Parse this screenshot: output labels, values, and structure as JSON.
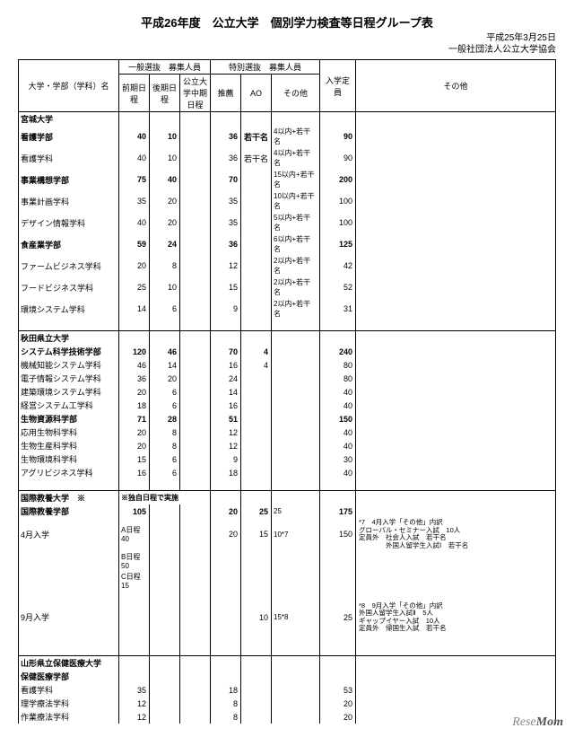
{
  "title": "平成26年度　公立大学　個別学力検査等日程グループ表",
  "meta_date": "平成25年3月25日",
  "meta_org": "一般社団法人公立大学協会",
  "header": {
    "name": "大学・学部（学科）名",
    "g1": "一般選抜　募集人員",
    "g2": "特別選抜　募集人員",
    "c1": "前期日程",
    "c2": "後期日程",
    "c3": "公立大学中期日程",
    "c4": "推薦",
    "c5": "AO",
    "c6": "その他",
    "cap": "入学定員",
    "etc": "その他"
  },
  "rows": [
    {
      "sec": true,
      "n": "宮城大学",
      "b": 1
    },
    {
      "n": "看護学部",
      "b": 1,
      "i": 1,
      "v": [
        "40",
        "10",
        "",
        "36",
        "若干名",
        "4以内+若干名",
        "90",
        ""
      ]
    },
    {
      "n": "看護学科",
      "i": 2,
      "v": [
        "40",
        "10",
        "",
        "36",
        "若干名",
        "4以内+若干名",
        "90",
        ""
      ]
    },
    {
      "n": "事業構想学部",
      "b": 1,
      "i": 1,
      "v": [
        "75",
        "40",
        "",
        "70",
        "",
        "15以内+若干名",
        "200",
        ""
      ]
    },
    {
      "n": "事業計画学科",
      "i": 2,
      "v": [
        "35",
        "20",
        "",
        "35",
        "",
        "10以内+若干名",
        "100",
        ""
      ]
    },
    {
      "n": "デザイン情報学科",
      "i": 2,
      "v": [
        "40",
        "20",
        "",
        "35",
        "",
        "5以内+若干名",
        "100",
        ""
      ]
    },
    {
      "n": "食産業学部",
      "b": 1,
      "i": 1,
      "v": [
        "59",
        "24",
        "",
        "36",
        "",
        "6以内+若干名",
        "125",
        ""
      ]
    },
    {
      "n": "ファームビジネス学科",
      "i": 2,
      "v": [
        "20",
        "8",
        "",
        "12",
        "",
        "2以内+若干名",
        "42",
        ""
      ]
    },
    {
      "n": "フードビジネス学科",
      "i": 2,
      "v": [
        "25",
        "10",
        "",
        "15",
        "",
        "2以内+若干名",
        "52",
        ""
      ]
    },
    {
      "n": "環境システム学科",
      "i": 2,
      "v": [
        "14",
        "6",
        "",
        "9",
        "",
        "2以内+若干名",
        "31",
        ""
      ]
    },
    {
      "sp": true
    },
    {
      "sec": true,
      "n": "秋田県立大学",
      "b": 1
    },
    {
      "n": "システム科学技術学部",
      "b": 1,
      "i": 1,
      "v": [
        "120",
        "46",
        "",
        "70",
        "4",
        "",
        "240",
        ""
      ]
    },
    {
      "n": "機械知能システム学科",
      "i": 2,
      "v": [
        "46",
        "14",
        "",
        "16",
        "4",
        "",
        "80",
        ""
      ]
    },
    {
      "n": "電子情報システム学科",
      "i": 2,
      "v": [
        "36",
        "20",
        "",
        "24",
        "",
        "",
        "80",
        ""
      ]
    },
    {
      "n": "建築環境システム学科",
      "i": 2,
      "v": [
        "20",
        "6",
        "",
        "14",
        "",
        "",
        "40",
        ""
      ]
    },
    {
      "n": "経営システム工学科",
      "i": 2,
      "v": [
        "18",
        "6",
        "",
        "16",
        "",
        "",
        "40",
        ""
      ]
    },
    {
      "n": "生物資源科学部",
      "b": 1,
      "i": 1,
      "v": [
        "71",
        "28",
        "",
        "51",
        "",
        "",
        "150",
        ""
      ]
    },
    {
      "n": "応用生物科学科",
      "i": 2,
      "v": [
        "20",
        "8",
        "",
        "12",
        "",
        "",
        "40",
        ""
      ]
    },
    {
      "n": "生物生産科学科",
      "i": 2,
      "v": [
        "20",
        "8",
        "",
        "12",
        "",
        "",
        "40",
        ""
      ]
    },
    {
      "n": "生物環境科学科",
      "i": 2,
      "v": [
        "15",
        "6",
        "",
        "9",
        "",
        "",
        "30",
        ""
      ]
    },
    {
      "n": "アグリビジネス学科",
      "i": 2,
      "v": [
        "16",
        "6",
        "",
        "18",
        "",
        "",
        "40",
        ""
      ]
    },
    {
      "sp": true
    },
    {
      "sec": true,
      "n": "国際教養大学　※",
      "b": 1,
      "span": "※独自日程で実施"
    },
    {
      "n": "国際教養学部",
      "b": 1,
      "i": 1,
      "v": [
        "105",
        "",
        "",
        "20",
        "25",
        "25",
        "175",
        ""
      ]
    },
    {
      "n": "4月入学",
      "i": 2,
      "v": [
        "A日程 40",
        "",
        "",
        "20",
        "15",
        "10*7",
        "150",
        "*7　4月入学「その他」内訳\nグローバル・セミナー入試　10人\n定員外　社会人入試　若干名\n　　　　外国人留学生入試Ⅰ　若干名"
      ],
      "la": true
    },
    {
      "n": "",
      "i": 2,
      "v": [
        "B日程 50",
        "",
        "",
        "",
        "",
        "",
        "",
        ""
      ],
      "la": true
    },
    {
      "n": "",
      "i": 2,
      "v": [
        "C日程 15",
        "",
        "",
        "",
        "",
        "",
        "",
        ""
      ],
      "la": true
    },
    {
      "sp": true
    },
    {
      "n": "9月入学",
      "i": 2,
      "v": [
        "",
        "",
        "",
        "",
        "10",
        "15*8",
        "25",
        "*8　9月入学「その他」内訳\n外国人留学生入試Ⅱ　5人\nギャップイヤー入試　10人\n定員外　帰国生入試　若干名"
      ]
    },
    {
      "sp": true
    },
    {
      "sp": true
    },
    {
      "sec": true,
      "n": "山形県立保健医療大学",
      "b": 1
    },
    {
      "n": "保健医療学部",
      "b": 1,
      "i": 1,
      "v": [
        "",
        "",
        "",
        "",
        "",
        "",
        "",
        ""
      ]
    },
    {
      "n": "看護学科",
      "i": 2,
      "v": [
        "35",
        "",
        "",
        "18",
        "",
        "",
        "53",
        ""
      ]
    },
    {
      "n": "理学療法学科",
      "i": 2,
      "v": [
        "12",
        "",
        "",
        "8",
        "",
        "",
        "20",
        ""
      ]
    },
    {
      "n": "作業療法学科",
      "i": 2,
      "v": [
        "12",
        "",
        "",
        "8",
        "",
        "",
        "20",
        ""
      ]
    }
  ],
  "watermark": "ReseMom"
}
